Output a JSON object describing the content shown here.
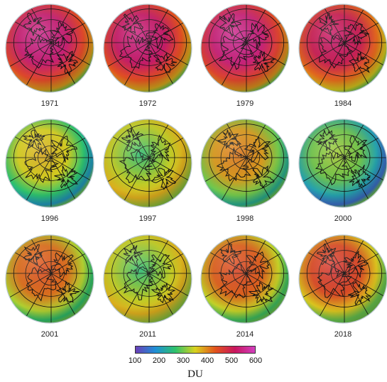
{
  "figure": {
    "panels": [
      {
        "year": "1971",
        "level": 0.92,
        "blue_core": false
      },
      {
        "year": "1972",
        "level": 0.9,
        "blue_core": false
      },
      {
        "year": "1979",
        "level": 0.93,
        "blue_core": false
      },
      {
        "year": "1984",
        "level": 0.86,
        "blue_core": false
      },
      {
        "year": "1996",
        "level": 0.55,
        "blue_core": false
      },
      {
        "year": "1997",
        "level": 0.35,
        "blue_core": true
      },
      {
        "year": "1998",
        "level": 0.62,
        "blue_core": false
      },
      {
        "year": "2000",
        "level": 0.45,
        "blue_core": false
      },
      {
        "year": "2001",
        "level": 0.68,
        "blue_core": false
      },
      {
        "year": "2011",
        "level": 0.38,
        "blue_core": true
      },
      {
        "year": "2014",
        "level": 0.7,
        "blue_core": false
      },
      {
        "year": "2018",
        "level": 0.74,
        "blue_core": false
      }
    ],
    "colorbar": {
      "ticks": [
        "100",
        "200",
        "300",
        "400",
        "500",
        "600"
      ],
      "unit": "DU",
      "colors": [
        "#6a3fb8",
        "#1f8fd6",
        "#2ec26b",
        "#d9d21e",
        "#e2541c",
        "#c8165e",
        "#d23fbf"
      ]
    }
  }
}
